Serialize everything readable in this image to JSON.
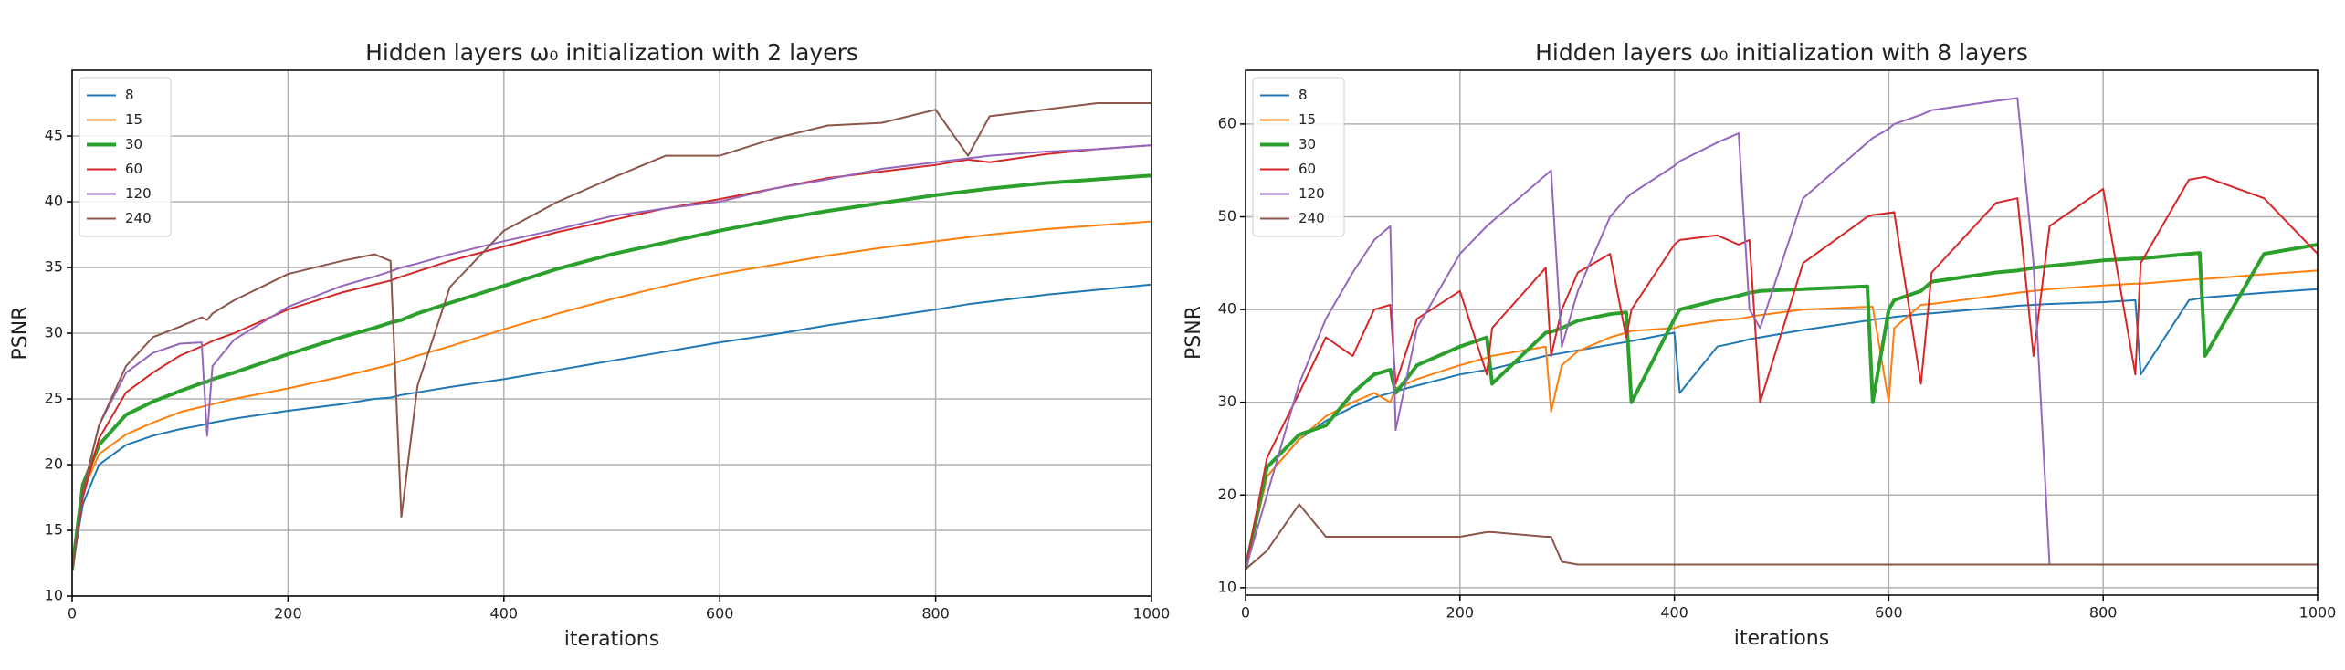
{
  "chart_data": [
    {
      "type": "line",
      "title": "Hidden layers ω₀ initialization with 2 layers",
      "x_label": "iterations",
      "y_label": "PSNR",
      "xlim": [
        0,
        1000
      ],
      "xticks": [
        0,
        200,
        400,
        600,
        800,
        1000
      ],
      "ylim": [
        10,
        50
      ],
      "yticks": [
        10,
        15,
        20,
        25,
        30,
        35,
        40,
        45
      ],
      "grid": true,
      "legend": "upper left",
      "x": [
        0,
        10,
        25,
        50,
        75,
        100,
        120,
        125,
        130,
        150,
        200,
        250,
        280,
        295,
        305,
        320,
        350,
        400,
        450,
        500,
        550,
        600,
        650,
        700,
        750,
        800,
        830,
        850,
        900,
        950,
        1000
      ],
      "series": [
        {
          "name": "8",
          "color": "#1f77b4",
          "linewidth": 2,
          "values": [
            12,
            17,
            20,
            21.5,
            22.2,
            22.7,
            23,
            23.1,
            23.2,
            23.5,
            24.1,
            24.6,
            25,
            25.1,
            25.3,
            25.5,
            25.9,
            26.5,
            27.2,
            27.9,
            28.6,
            29.3,
            29.9,
            30.6,
            31.2,
            31.8,
            32.2,
            32.4,
            32.9,
            33.3,
            33.7
          ]
        },
        {
          "name": "15",
          "color": "#ff7f0e",
          "linewidth": 2,
          "values": [
            12,
            18,
            20.8,
            22.3,
            23.2,
            24,
            24.4,
            24.5,
            24.6,
            25,
            25.8,
            26.7,
            27.3,
            27.6,
            27.9,
            28.3,
            29,
            30.3,
            31.5,
            32.6,
            33.6,
            34.5,
            35.2,
            35.9,
            36.5,
            37,
            37.3,
            37.5,
            37.9,
            38.2,
            38.5
          ]
        },
        {
          "name": "30",
          "color": "#2ca02c",
          "linewidth": 4,
          "values": [
            12,
            18.5,
            21.5,
            23.8,
            24.8,
            25.6,
            26.2,
            26.3,
            26.5,
            27,
            28.4,
            29.7,
            30.4,
            30.8,
            31,
            31.5,
            32.3,
            33.6,
            34.9,
            36,
            36.9,
            37.8,
            38.6,
            39.3,
            39.9,
            40.5,
            40.8,
            41,
            41.4,
            41.7,
            42
          ]
        },
        {
          "name": "60",
          "color": "#d62728",
          "linewidth": 2,
          "values": [
            12,
            17.5,
            22,
            25.5,
            27,
            28.3,
            29,
            29.2,
            29.4,
            30,
            31.8,
            33.1,
            33.7,
            34,
            34.3,
            34.7,
            35.5,
            36.6,
            37.7,
            38.6,
            39.5,
            40.2,
            41,
            41.8,
            42.3,
            42.8,
            43.2,
            43,
            43.6,
            44,
            44.3
          ]
        },
        {
          "name": "120",
          "color": "#9467bd",
          "linewidth": 2,
          "values": [
            12,
            18,
            23,
            27,
            28.5,
            29.2,
            29.3,
            22.2,
            27.5,
            29.5,
            32,
            33.6,
            34.3,
            34.7,
            35,
            35.3,
            36,
            37,
            37.9,
            38.9,
            39.5,
            40,
            41,
            41.7,
            42.5,
            43,
            43.3,
            43.5,
            43.8,
            44,
            44.3
          ]
        },
        {
          "name": "240",
          "color": "#8c564b",
          "linewidth": 2,
          "values": [
            12,
            18,
            23,
            27.5,
            29.7,
            30.5,
            31.2,
            31,
            31.5,
            32.5,
            34.5,
            35.5,
            36,
            35.5,
            16,
            26,
            33.5,
            37.8,
            40,
            41.8,
            43.5,
            43.5,
            44.8,
            45.8,
            46,
            47,
            43.5,
            46.5,
            47,
            47.5,
            47.5
          ]
        }
      ]
    },
    {
      "type": "line",
      "title": "Hidden layers ω₀ initialization with 8 layers",
      "x_label": "iterations",
      "y_label": "PSNR",
      "xlim": [
        0,
        1000
      ],
      "xticks": [
        0,
        200,
        400,
        600,
        800,
        1000
      ],
      "ylim": [
        9.2,
        65.8
      ],
      "yticks": [
        10,
        20,
        30,
        40,
        50,
        60
      ],
      "grid": true,
      "legend": "upper left",
      "x": [
        0,
        20,
        50,
        75,
        100,
        120,
        135,
        140,
        160,
        200,
        225,
        230,
        280,
        285,
        295,
        310,
        340,
        355,
        360,
        400,
        405,
        440,
        460,
        470,
        480,
        520,
        580,
        585,
        600,
        605,
        630,
        640,
        700,
        720,
        735,
        750,
        800,
        830,
        835,
        880,
        890,
        895,
        950,
        1000
      ],
      "series": [
        {
          "name": "8",
          "color": "#1f77b4",
          "linewidth": 2,
          "values": [
            12,
            22,
            26,
            28,
            29.5,
            30.5,
            31,
            31.2,
            31.8,
            33,
            33.5,
            33.6,
            35,
            35.1,
            35.3,
            35.6,
            36.2,
            36.5,
            36.6,
            37.5,
            31,
            36,
            36.5,
            36.8,
            37,
            37.8,
            38.8,
            38.9,
            39.1,
            39.2,
            39.5,
            39.6,
            40.2,
            40.4,
            40.5,
            40.6,
            40.8,
            41,
            33,
            41,
            41.2,
            41.3,
            41.8,
            42.2
          ]
        },
        {
          "name": "15",
          "color": "#ff7f0e",
          "linewidth": 2,
          "values": [
            12,
            22,
            26,
            28.5,
            30,
            31,
            30,
            31.5,
            32.5,
            34,
            34.8,
            35,
            36,
            29,
            34,
            35.5,
            37,
            37.5,
            37.7,
            38,
            38.2,
            38.8,
            39,
            39.2,
            39.4,
            40,
            40.3,
            40.3,
            30,
            38,
            40.5,
            40.6,
            41.5,
            41.8,
            42,
            42.2,
            42.6,
            42.8,
            42.8,
            43.2,
            43.3,
            43.3,
            43.8,
            44.2
          ]
        },
        {
          "name": "30",
          "color": "#2ca02c",
          "linewidth": 4,
          "values": [
            12,
            23,
            26.5,
            27.5,
            31,
            33,
            33.5,
            31,
            34,
            36,
            37,
            32,
            37.5,
            37.6,
            38,
            38.8,
            39.5,
            39.7,
            30,
            39,
            40,
            41,
            41.5,
            41.8,
            42,
            42.2,
            42.5,
            30,
            40,
            41,
            42,
            43,
            44,
            44.2,
            44.5,
            44.7,
            45.3,
            45.5,
            45.5,
            46,
            46.1,
            35,
            46,
            47
          ]
        },
        {
          "name": "60",
          "color": "#d62728",
          "linewidth": 2,
          "values": [
            12,
            24,
            31,
            37,
            35,
            40,
            40.5,
            32,
            39,
            42,
            33,
            38,
            44.5,
            35,
            40,
            44,
            46,
            37,
            40,
            47,
            47.5,
            48,
            47,
            47.5,
            30,
            45,
            50,
            50.2,
            50.4,
            50.5,
            32,
            44,
            51.5,
            52,
            35,
            49,
            53,
            33,
            45,
            54,
            54.2,
            54.3,
            52,
            46
          ]
        },
        {
          "name": "120",
          "color": "#9467bd",
          "linewidth": 2,
          "values": [
            12,
            20,
            32,
            39,
            44,
            47.5,
            49,
            27,
            38,
            46,
            49,
            49.5,
            54.5,
            55,
            36,
            42,
            50,
            52,
            52.5,
            55.5,
            56,
            58,
            59,
            40,
            38,
            52,
            58,
            58.5,
            59.5,
            60,
            61,
            61.5,
            62.5,
            62.8,
            45,
            12.5,
            12.5,
            12.5,
            12.5,
            12.5,
            12.5,
            12.5,
            12.5,
            12.5
          ]
        },
        {
          "name": "240",
          "color": "#8c564b",
          "linewidth": 2,
          "values": [
            12,
            14,
            19,
            15.5,
            15.5,
            15.5,
            15.5,
            15.5,
            15.5,
            15.5,
            16,
            16,
            15.5,
            15.5,
            12.8,
            12.5,
            12.5,
            12.5,
            12.5,
            12.5,
            12.5,
            12.5,
            12.5,
            12.5,
            12.5,
            12.5,
            12.5,
            12.5,
            12.5,
            12.5,
            12.5,
            12.5,
            12.5,
            12.5,
            12.5,
            12.5,
            12.5,
            12.5,
            12.5,
            12.5,
            12.5,
            12.5,
            12.5,
            12.5
          ]
        }
      ]
    }
  ]
}
